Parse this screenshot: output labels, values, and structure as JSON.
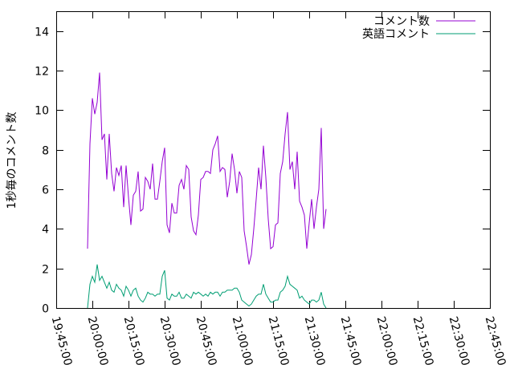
{
  "chart_data": {
    "type": "line",
    "ylabel": "1秒毎のコメント数",
    "ylim": [
      0,
      15
    ],
    "yticks": [
      0,
      2,
      4,
      6,
      8,
      10,
      12,
      14
    ],
    "xlim": [
      "19:45:00",
      "22:45:00"
    ],
    "xticks": [
      "19:45:00",
      "20:00:00",
      "20:15:00",
      "20:30:00",
      "20:45:00",
      "21:00:00",
      "21:15:00",
      "21:30:00",
      "21:45:00",
      "22:00:00",
      "22:15:00",
      "22:30:00",
      "22:45:00"
    ],
    "grid": false,
    "legend_position": "top-right",
    "series": [
      {
        "name": "コメント数",
        "color": "#9400d3",
        "points": [
          [
            "19:58:00",
            3.0
          ],
          [
            "19:59:00",
            8.3
          ],
          [
            "20:00:00",
            10.6
          ],
          [
            "20:01:00",
            9.8
          ],
          [
            "20:02:00",
            10.4
          ],
          [
            "20:03:00",
            11.9
          ],
          [
            "20:04:00",
            8.5
          ],
          [
            "20:05:00",
            8.8
          ],
          [
            "20:06:00",
            6.5
          ],
          [
            "20:07:00",
            8.8
          ],
          [
            "20:08:00",
            6.8
          ],
          [
            "20:09:00",
            5.9
          ],
          [
            "20:10:00",
            7.1
          ],
          [
            "20:11:00",
            6.7
          ],
          [
            "20:12:00",
            7.2
          ],
          [
            "20:13:00",
            5.1
          ],
          [
            "20:14:00",
            7.2
          ],
          [
            "20:15:00",
            5.6
          ],
          [
            "20:16:00",
            4.2
          ],
          [
            "20:17:00",
            5.7
          ],
          [
            "20:18:00",
            5.9
          ],
          [
            "20:19:00",
            6.9
          ],
          [
            "20:20:00",
            4.9
          ],
          [
            "20:21:00",
            5.0
          ],
          [
            "20:22:00",
            6.6
          ],
          [
            "20:23:00",
            6.4
          ],
          [
            "20:24:00",
            6.0
          ],
          [
            "20:25:00",
            7.3
          ],
          [
            "20:26:00",
            5.5
          ],
          [
            "20:27:00",
            5.5
          ],
          [
            "20:28:00",
            6.4
          ],
          [
            "20:29:00",
            7.4
          ],
          [
            "20:30:00",
            8.1
          ],
          [
            "20:31:00",
            4.2
          ],
          [
            "20:32:00",
            3.8
          ],
          [
            "20:33:00",
            5.3
          ],
          [
            "20:34:00",
            4.8
          ],
          [
            "20:35:00",
            4.8
          ],
          [
            "20:36:00",
            6.2
          ],
          [
            "20:37:00",
            6.5
          ],
          [
            "20:38:00",
            6.0
          ],
          [
            "20:39:00",
            7.2
          ],
          [
            "20:40:00",
            7.0
          ],
          [
            "20:41:00",
            4.6
          ],
          [
            "20:42:00",
            3.9
          ],
          [
            "20:43:00",
            3.7
          ],
          [
            "20:44:00",
            4.7
          ],
          [
            "20:45:00",
            6.5
          ],
          [
            "20:46:00",
            6.6
          ],
          [
            "20:47:00",
            6.9
          ],
          [
            "20:48:00",
            6.9
          ],
          [
            "20:49:00",
            6.8
          ],
          [
            "20:50:00",
            8.0
          ],
          [
            "20:51:00",
            8.3
          ],
          [
            "20:52:00",
            8.7
          ],
          [
            "20:53:00",
            6.9
          ],
          [
            "20:54:00",
            7.1
          ],
          [
            "20:55:00",
            7.0
          ],
          [
            "20:56:00",
            5.6
          ],
          [
            "20:57:00",
            6.4
          ],
          [
            "20:58:00",
            7.8
          ],
          [
            "20:59:00",
            7.0
          ],
          [
            "21:00:00",
            5.8
          ],
          [
            "21:01:00",
            6.9
          ],
          [
            "21:02:00",
            6.6
          ],
          [
            "21:03:00",
            3.9
          ],
          [
            "21:04:00",
            3.1
          ],
          [
            "21:05:00",
            2.2
          ],
          [
            "21:06:00",
            2.7
          ],
          [
            "21:07:00",
            4.0
          ],
          [
            "21:08:00",
            5.5
          ],
          [
            "21:09:00",
            7.1
          ],
          [
            "21:10:00",
            6.0
          ],
          [
            "21:11:00",
            8.2
          ],
          [
            "21:12:00",
            6.6
          ],
          [
            "21:13:00",
            4.5
          ],
          [
            "21:14:00",
            3.0
          ],
          [
            "21:15:00",
            3.1
          ],
          [
            "21:16:00",
            4.2
          ],
          [
            "21:17:00",
            4.3
          ],
          [
            "21:18:00",
            6.8
          ],
          [
            "21:19:00",
            7.4
          ],
          [
            "21:20:00",
            8.8
          ],
          [
            "21:21:00",
            9.9
          ],
          [
            "21:22:00",
            7.0
          ],
          [
            "21:23:00",
            7.4
          ],
          [
            "21:24:00",
            6.0
          ],
          [
            "21:25:00",
            7.9
          ],
          [
            "21:26:00",
            5.4
          ],
          [
            "21:27:00",
            5.1
          ],
          [
            "21:28:00",
            4.7
          ],
          [
            "21:29:00",
            3.0
          ],
          [
            "21:30:00",
            4.3
          ],
          [
            "21:31:00",
            5.5
          ],
          [
            "21:32:00",
            4.0
          ],
          [
            "21:33:00",
            5.1
          ],
          [
            "21:34:00",
            6.0
          ],
          [
            "21:35:00",
            9.1
          ],
          [
            "21:36:00",
            4.0
          ],
          [
            "21:37:00",
            5.0
          ]
        ]
      },
      {
        "name": "英語コメント",
        "color": "#009e73",
        "points": [
          [
            "19:58:00",
            0.0
          ],
          [
            "19:59:00",
            1.2
          ],
          [
            "20:00:00",
            1.6
          ],
          [
            "20:01:00",
            1.3
          ],
          [
            "20:02:00",
            2.2
          ],
          [
            "20:03:00",
            1.4
          ],
          [
            "20:04:00",
            1.6
          ],
          [
            "20:05:00",
            1.3
          ],
          [
            "20:06:00",
            1.0
          ],
          [
            "20:07:00",
            1.3
          ],
          [
            "20:08:00",
            0.9
          ],
          [
            "20:09:00",
            0.8
          ],
          [
            "20:10:00",
            1.2
          ],
          [
            "20:11:00",
            1.0
          ],
          [
            "20:12:00",
            0.9
          ],
          [
            "20:13:00",
            0.6
          ],
          [
            "20:14:00",
            1.1
          ],
          [
            "20:15:00",
            0.9
          ],
          [
            "20:16:00",
            0.6
          ],
          [
            "20:17:00",
            0.9
          ],
          [
            "20:18:00",
            1.0
          ],
          [
            "20:19:00",
            0.6
          ],
          [
            "20:20:00",
            0.4
          ],
          [
            "20:21:00",
            0.3
          ],
          [
            "20:22:00",
            0.5
          ],
          [
            "20:23:00",
            0.8
          ],
          [
            "20:24:00",
            0.7
          ],
          [
            "20:25:00",
            0.7
          ],
          [
            "20:26:00",
            0.6
          ],
          [
            "20:27:00",
            0.7
          ],
          [
            "20:28:00",
            0.7
          ],
          [
            "20:29:00",
            1.6
          ],
          [
            "20:30:00",
            1.9
          ],
          [
            "20:31:00",
            0.5
          ],
          [
            "20:32:00",
            0.4
          ],
          [
            "20:33:00",
            0.7
          ],
          [
            "20:34:00",
            0.6
          ],
          [
            "20:35:00",
            0.6
          ],
          [
            "20:36:00",
            0.8
          ],
          [
            "20:37:00",
            0.5
          ],
          [
            "20:38:00",
            0.5
          ],
          [
            "20:39:00",
            0.7
          ],
          [
            "20:40:00",
            0.6
          ],
          [
            "20:41:00",
            0.5
          ],
          [
            "20:42:00",
            0.8
          ],
          [
            "20:43:00",
            0.7
          ],
          [
            "20:44:00",
            0.8
          ],
          [
            "20:45:00",
            0.7
          ],
          [
            "20:46:00",
            0.6
          ],
          [
            "20:47:00",
            0.7
          ],
          [
            "20:48:00",
            0.6
          ],
          [
            "20:49:00",
            0.8
          ],
          [
            "20:50:00",
            0.7
          ],
          [
            "20:51:00",
            0.8
          ],
          [
            "20:52:00",
            0.8
          ],
          [
            "20:53:00",
            0.6
          ],
          [
            "20:54:00",
            0.8
          ],
          [
            "20:55:00",
            0.8
          ],
          [
            "20:56:00",
            0.9
          ],
          [
            "20:57:00",
            0.9
          ],
          [
            "20:58:00",
            0.9
          ],
          [
            "20:59:00",
            1.0
          ],
          [
            "21:00:00",
            1.0
          ],
          [
            "21:01:00",
            0.8
          ],
          [
            "21:02:00",
            0.4
          ],
          [
            "21:03:00",
            0.3
          ],
          [
            "21:04:00",
            0.2
          ],
          [
            "21:05:00",
            0.1
          ],
          [
            "21:06:00",
            0.2
          ],
          [
            "21:07:00",
            0.4
          ],
          [
            "21:08:00",
            0.6
          ],
          [
            "21:09:00",
            0.7
          ],
          [
            "21:10:00",
            0.7
          ],
          [
            "21:11:00",
            1.2
          ],
          [
            "21:12:00",
            0.7
          ],
          [
            "21:13:00",
            0.5
          ],
          [
            "21:14:00",
            0.3
          ],
          [
            "21:15:00",
            0.3
          ],
          [
            "21:16:00",
            0.4
          ],
          [
            "21:17:00",
            0.4
          ],
          [
            "21:18:00",
            0.8
          ],
          [
            "21:19:00",
            0.9
          ],
          [
            "21:20:00",
            1.1
          ],
          [
            "21:21:00",
            1.6
          ],
          [
            "21:22:00",
            1.2
          ],
          [
            "21:23:00",
            1.1
          ],
          [
            "21:24:00",
            1.0
          ],
          [
            "21:25:00",
            0.9
          ],
          [
            "21:26:00",
            0.5
          ],
          [
            "21:27:00",
            0.6
          ],
          [
            "21:28:00",
            0.4
          ],
          [
            "21:29:00",
            0.3
          ],
          [
            "21:30:00",
            0.2
          ],
          [
            "21:31:00",
            0.4
          ],
          [
            "21:32:00",
            0.4
          ],
          [
            "21:33:00",
            0.3
          ],
          [
            "21:34:00",
            0.4
          ],
          [
            "21:35:00",
            0.8
          ],
          [
            "21:36:00",
            0.2
          ],
          [
            "21:37:00",
            0.0
          ]
        ]
      }
    ]
  }
}
